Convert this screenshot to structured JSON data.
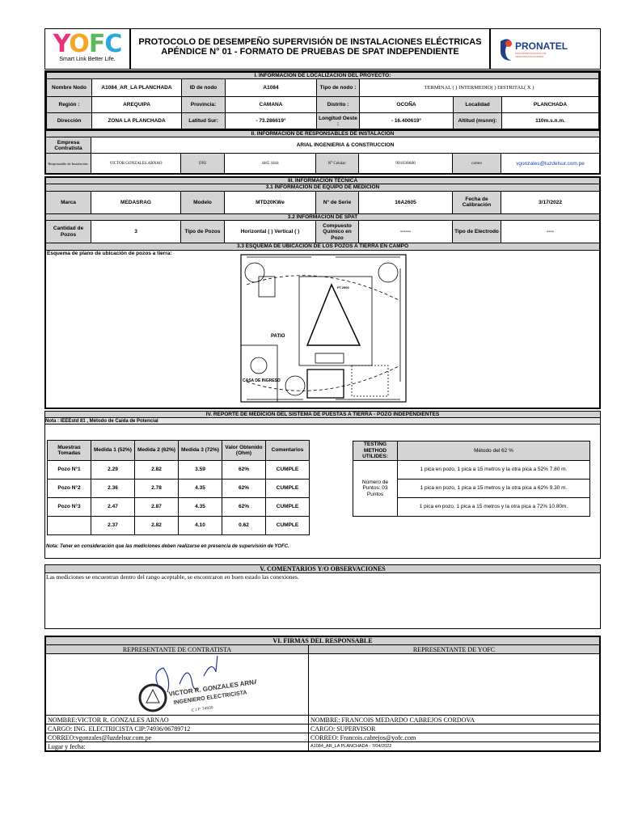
{
  "header": {
    "logo_left": "YOFC",
    "logo_left_tagline": "Smart Link Better Life.",
    "title_line1": "PROTOCOLO DE DESEMPEÑO SUPERVISIÓN DE INSTALACIONES ELÉCTRICAS",
    "title_line2": "APÉNDICE N° 01 - FORMATO DE PRUEBAS DE SPAT INDEPENDIENTE",
    "logo_right": "PRONATEL",
    "logo_right_sub": "PROGRAMA NACIONAL DE TELECOMUNICACIONES"
  },
  "s1": {
    "title": "I. INFORMACIÓN DE LOCALIZACIÓN DEL PROYECTO:",
    "nombre_nodo_l": "Nombre Nodo",
    "nombre_nodo": "A1084_AR_LA PLANCHADA",
    "id_nodo_l": "ID de nodo",
    "id_nodo": "A1084",
    "tipo_nodo_l": "Tipo de nodo :",
    "tipo_nodo": "TERMINAL (   )   INTERMEDIO(   )    DISTRITAL( X )",
    "region_l": "Región :",
    "region": "AREQUIPA",
    "provincia_l": "Provincia:",
    "provincia": "CAMANA",
    "distrito_l": "Distrito :",
    "distrito": "OCOÑA",
    "localidad_l": "Localidad",
    "localidad": "PLANCHADA",
    "direccion_l": "Dirección",
    "direccion": "ZONA LA PLANCHADA",
    "latitud_l": "Latitud Sur:",
    "latitud": "- 73.286619°",
    "longitud_l": "Longitud Oeste :",
    "longitud": "- 16.400619°",
    "altitud_l": "Altitud (msnm):",
    "altitud": "110m.s.n.m."
  },
  "s2": {
    "title": "II. INFORMACIÓN DE RESPONSABLES DE INSTALACIÓN",
    "empresa_l": "Empresa Contratista",
    "empresa": "ARIAL INGENIERIA & CONSTRUCCION",
    "resp_l": "Responsable de Instalación:",
    "resp": "VICTOR GONZALES ARNAO",
    "dni_l": "DNI",
    "dni": "4465 1844",
    "cel_l": "N° Celular:",
    "cel": "991030686",
    "correo_l": "correo",
    "correo": "vgonzales@luzdelsur.com.pe"
  },
  "s3": {
    "title": "III. INFORMACIÓN TÉCNICA",
    "sub1": "3.1 INFORMACIÓN DE EQUIPO DE MEDICIÓN",
    "marca_l": "Marca",
    "marca": "MEDASRAG",
    "modelo_l": "Modelo",
    "modelo": "MTD20KWe",
    "serie_l": "N° de Serie",
    "serie": "16A2605",
    "fecha_l": "Fecha de Calibración",
    "fecha": "3/17/2022",
    "sub2": "3.2 INFORMACIÓN DE SPAT",
    "cant_l": "Cantidad de Pozos",
    "cant": "3",
    "tipo_pozo_l": "Tipo de Pozos",
    "tipo_pozo": "Horizontal (  )     Vertical (  )",
    "comp_l": "Compuesto Químico en Pozo",
    "comp": "------",
    "electrodo_l": "Tipo de Electrodo",
    "electrodo": "----",
    "sub3": "3.3 ESQUEMA DE UBICACION DE LOS POZOS A TIERRA EN CAMPO",
    "esquema_l": "Esquema de plano de ubicación de pozos a tierra:",
    "plan_labels": [
      "PATIO",
      "CASA DE INGRESO",
      "PT.2900"
    ]
  },
  "s4": {
    "title": "IV. REPORTE DE MEDICIÓN DEL SISTEMA DE PUESTAS A TIERRA - POZO INDEPENDIENTES",
    "nota_top": "Nota : IEEEstd 81 , Método de Caída de Potencial",
    "headers": [
      "Muestras Tomadas",
      "Medida 1 (52%)",
      "Medida 2 (62%)",
      "Medida 3 (72%)",
      "Valor Obtenido (Ohm)",
      "Comentarios"
    ],
    "rows": [
      [
        "Pozo N°1",
        "2.29",
        "2.82",
        "3.59",
        "62%",
        "CUMPLE"
      ],
      [
        "Pozo N°2",
        "2.36",
        "2.78",
        "4.35",
        "62%",
        "CUMPLE"
      ],
      [
        "Pozo N°3",
        "2.47",
        "2.87",
        "4.35",
        "62%",
        "CUMPLE"
      ],
      [
        "",
        "2.37",
        "2.82",
        "4.10",
        "0.62",
        "CUMPLE"
      ]
    ],
    "method_h1": "TESTING METHOD UTILIDES:",
    "method_h2": "Método del 62 %",
    "puntos": "Número de Puntos: 03 Puntos",
    "method_rows": [
      "1 pica en pozo, 1 pica a 15 metros y la otra pica a 52%   7.80 m.",
      "1 pica en pozo, 1 pica a 15 metros y la otra pica a 62%   9.30 m.",
      "1 pica en pozo, 1 pica a 15 metros y la otra pica a 72%   10.80m."
    ],
    "nota_bottom": "Nota: Tener en consideración que las mediciones deben realizarse en presencia de supervisión de YOFC."
  },
  "s5": {
    "title": "V. COMENTARIOS Y/O OBSERVACIONES",
    "text": "Las mediciones se encuentran dentro del rango aceptable, se encontraron en buen estado las conexiones."
  },
  "s6": {
    "title": "VI. FIRMAS DEL RESPONSABLE",
    "left_h": "REPRESENTANTE DE CONTRATISTA",
    "right_h": "REPRESENTANTE DE YOFC",
    "stamp": "VICTOR R. GONZALES ARNAO INGENIERO ELECTRICISTA C.I.P. 74936",
    "left_nombre": "NOMBRE:VICTOR R. GONZALES ARNAO",
    "left_cargo": "CARGO: ING. ELECTRICISTA CIP:74936/06789712",
    "left_correo": "CORREO:vgonzales@luzdelsur.com.pe",
    "lugar": "Lugar y fecha:",
    "right_nombre": "NOMBRE: FRANCOIS MEDARDO CABREJOS CORDOVA",
    "right_cargo": "CARGO: SUPERVISOR",
    "right_correo": "CORREO: Francois.cabrejos@yofc.com",
    "right_lugar": "A1084_AR_LA PLANCHADA - 7/04/2022"
  },
  "colors": {
    "header_gray": "#d0d0d0",
    "link": "#1a3fb0",
    "yofc": [
      "#e8327c",
      "#f5a623",
      "#5cb85c",
      "#2aa7df"
    ],
    "pronatel": "#1f3f87"
  }
}
